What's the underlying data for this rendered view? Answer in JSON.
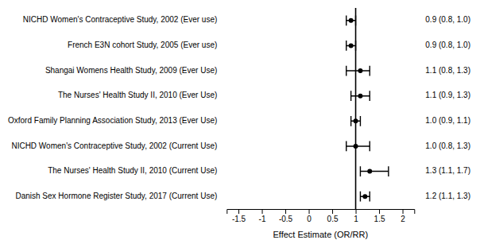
{
  "chart_data": {
    "type": "forest",
    "xlabel": "Effect Estimate (OR/RR)",
    "categories": [
      "NICHD Women's Contraceptive Study, 2002 (Ever use)",
      "French E3N cohort Study, 2005 (Ever use)",
      "Shangai Womens Health Study, 2009 (Ever Use)",
      "The Nurses' Health Study II, 2010 (Ever Use)",
      "Oxford Family Planning Association Study, 2013 (Ever Use)",
      "NICHD Women's Contraceptive Study, 2002 (Current Use)",
      "The Nurses' Health Study II, 2010 (Current Use)",
      "Danish Sex Hormone Register Study, 2017 (Current Use)"
    ],
    "values": [
      0.9,
      0.9,
      1.1,
      1.1,
      1.0,
      1.0,
      1.3,
      1.2
    ],
    "ci_low": [
      0.8,
      0.8,
      0.8,
      0.9,
      0.9,
      0.8,
      1.1,
      1.1
    ],
    "ci_high": [
      1.0,
      1.0,
      1.3,
      1.3,
      1.1,
      1.3,
      1.7,
      1.3
    ],
    "value_labels": [
      "0.9 (0.8, 1.0)",
      "0.9 (0.8, 1.0)",
      "1.1 (0.8, 1.3)",
      "1.1 (0.9, 1.3)",
      "1.0 (0.9, 1.1)",
      "1.0 (0.8, 1.3)",
      "1.3 (1.1, 1.7)",
      "1.2 (1.1, 1.3)"
    ],
    "data_labels": true,
    "reference_x": 1.0,
    "color": "black",
    "xlim": [
      -1.75,
      2.25
    ],
    "xticks": [
      -1.5,
      -1,
      -0.5,
      0,
      0.5,
      1,
      1.5,
      2
    ],
    "grid": false
  }
}
